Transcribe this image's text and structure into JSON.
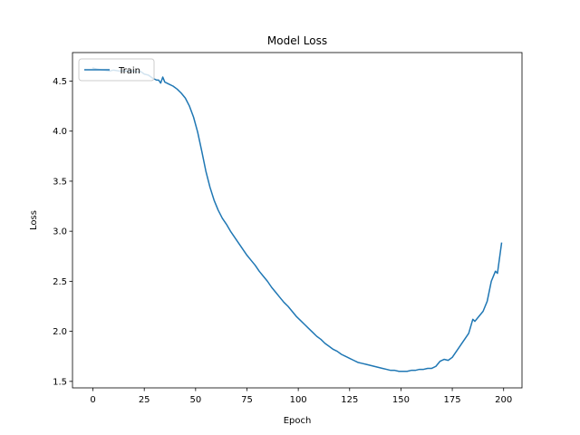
{
  "chart_data": {
    "type": "line",
    "title": "Model Loss",
    "xlabel": "Epoch",
    "ylabel": "Loss",
    "xlim": [
      -9.95,
      208.95
    ],
    "ylim": [
      1.435,
      4.785
    ],
    "xticks": [
      0,
      25,
      50,
      75,
      100,
      125,
      150,
      175,
      200
    ],
    "yticks": [
      1.5,
      2.0,
      2.5,
      3.0,
      3.5,
      4.0,
      4.5
    ],
    "ytick_labels": [
      "1.5",
      "2.0",
      "2.5",
      "3.0",
      "3.5",
      "4.0",
      "4.5"
    ],
    "grid": false,
    "legend": {
      "position": "upper-left"
    },
    "series": [
      {
        "name": "Train",
        "color": "#1f77b4",
        "x": [
          0,
          2,
          5,
          8,
          10,
          13,
          15,
          18,
          20,
          22,
          23,
          25,
          27,
          29,
          31,
          32,
          33,
          34,
          35,
          37,
          39,
          41,
          43,
          45,
          47,
          49,
          51,
          53,
          55,
          57,
          59,
          61,
          63,
          65,
          67,
          69,
          71,
          73,
          75,
          77,
          79,
          81,
          83,
          85,
          87,
          89,
          91,
          93,
          95,
          97,
          99,
          101,
          103,
          105,
          107,
          109,
          111,
          113,
          115,
          117,
          119,
          121,
          123,
          125,
          127,
          129,
          131,
          133,
          135,
          137,
          139,
          141,
          143,
          145,
          147,
          149,
          151,
          153,
          155,
          157,
          159,
          161,
          163,
          165,
          167,
          169,
          171,
          173,
          175,
          177,
          179,
          181,
          183,
          185,
          186,
          188,
          190,
          192,
          193,
          194,
          196,
          197,
          199
        ],
        "y": [
          4.63,
          4.62,
          4.61,
          4.6,
          4.61,
          4.6,
          4.6,
          4.6,
          4.6,
          4.59,
          4.6,
          4.57,
          4.56,
          4.53,
          4.51,
          4.51,
          4.48,
          4.54,
          4.49,
          4.47,
          4.45,
          4.42,
          4.38,
          4.33,
          4.25,
          4.14,
          3.99,
          3.8,
          3.6,
          3.44,
          3.31,
          3.21,
          3.13,
          3.07,
          3.0,
          2.94,
          2.88,
          2.82,
          2.76,
          2.71,
          2.66,
          2.6,
          2.55,
          2.5,
          2.44,
          2.39,
          2.34,
          2.29,
          2.25,
          2.2,
          2.15,
          2.11,
          2.07,
          2.03,
          1.99,
          1.95,
          1.92,
          1.88,
          1.85,
          1.82,
          1.8,
          1.77,
          1.75,
          1.73,
          1.71,
          1.69,
          1.68,
          1.67,
          1.66,
          1.65,
          1.64,
          1.63,
          1.62,
          1.61,
          1.61,
          1.6,
          1.6,
          1.6,
          1.61,
          1.61,
          1.62,
          1.62,
          1.63,
          1.63,
          1.65,
          1.7,
          1.72,
          1.71,
          1.74,
          1.8,
          1.86,
          1.92,
          1.98,
          2.12,
          2.1,
          2.15,
          2.2,
          2.3,
          2.4,
          2.5,
          2.6,
          2.58,
          2.88
        ]
      }
    ]
  }
}
